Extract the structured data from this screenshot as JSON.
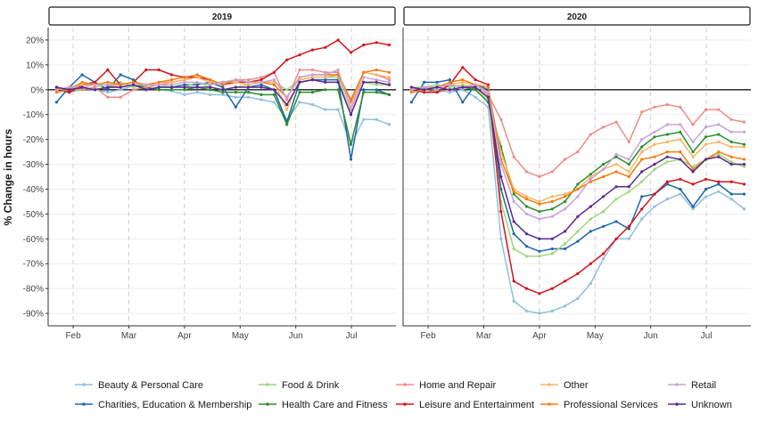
{
  "chart_data": {
    "type": "line",
    "ylabel": "% Change in hours",
    "ylim": [
      -95,
      25
    ],
    "yticks": [
      20,
      10,
      0,
      -10,
      -20,
      -30,
      -40,
      -50,
      -60,
      -70,
      -80,
      -90
    ],
    "ytick_labels": [
      "20%",
      "10%",
      "0%",
      "-10%",
      "-20%",
      "-30%",
      "-40%",
      "-50%",
      "-60%",
      "-70%",
      "-80%",
      "-90%"
    ],
    "xlim": [
      1.55,
      7.8
    ],
    "xticks": [
      2,
      3,
      4,
      5,
      6,
      7
    ],
    "xtick_labels": [
      "Feb",
      "Mar",
      "Apr",
      "May",
      "Jun",
      "Jul"
    ],
    "x_note": "x values are in months of the year (1.0 = Jan 1)",
    "grid": true,
    "legend_position": "bottom",
    "panels": [
      {
        "title": "2019",
        "x": [
          1.7,
          1.93,
          2.16,
          2.39,
          2.62,
          2.85,
          3.08,
          3.31,
          3.54,
          3.77,
          4.0,
          4.23,
          4.46,
          4.69,
          4.92,
          5.15,
          5.38,
          5.61,
          5.84,
          6.07,
          6.3,
          6.53,
          6.76,
          6.99,
          7.22,
          7.45,
          7.68
        ],
        "series": [
          {
            "name": "Beauty & Personal Care",
            "values": [
              0.5,
              -1,
              0.5,
              0,
              -1,
              0,
              1.5,
              1,
              0,
              -0.5,
              -2,
              -1,
              -2,
              -2,
              -3,
              -3,
              -4,
              -5,
              -12,
              -5,
              -6,
              -8,
              -8,
              -22,
              -12,
              -12,
              -14
            ]
          },
          {
            "name": "Charities, Education & Membership",
            "values": [
              -5,
              1,
              6,
              3,
              0,
              6,
              4,
              0,
              1,
              1,
              2,
              2,
              3,
              1,
              -7,
              1,
              2,
              0,
              -13,
              3,
              4,
              4,
              4,
              -28,
              0,
              0,
              -2
            ]
          },
          {
            "name": "Food & Drink",
            "values": [
              1,
              -1,
              0,
              1,
              2,
              3,
              1,
              2,
              2,
              1,
              1,
              3,
              1,
              0,
              1,
              2,
              3,
              3,
              0,
              4,
              5,
              5,
              5,
              -10,
              3,
              2,
              2
            ]
          },
          {
            "name": "Health Care and Fitness",
            "values": [
              1,
              -1,
              1,
              0,
              1,
              1,
              2,
              1,
              0,
              0,
              0,
              1,
              0,
              -1,
              -1,
              -1,
              -2,
              -2,
              -14,
              -1,
              -1,
              0,
              0,
              -22,
              -1,
              -1,
              -2
            ]
          },
          {
            "name": "Home and Repair",
            "values": [
              1,
              0,
              0,
              1,
              -3,
              -3,
              0,
              1,
              2,
              3,
              4,
              5,
              3,
              3,
              4,
              4,
              5,
              7,
              -4,
              8,
              8,
              7,
              7,
              -5,
              7,
              6,
              4
            ]
          },
          {
            "name": "Leisure and Entertainment",
            "values": [
              0,
              -1,
              2,
              3,
              8,
              2,
              3,
              8,
              8,
              6,
              5,
              5,
              4,
              2,
              3,
              3,
              4,
              7,
              12,
              14,
              16,
              17,
              20,
              15,
              18,
              19,
              18
            ]
          },
          {
            "name": "Other",
            "values": [
              0,
              1,
              2,
              2,
              2,
              2,
              3,
              2,
              3,
              3,
              4,
              5,
              3,
              3,
              3,
              2,
              3,
              3,
              -8,
              4,
              5,
              5,
              6,
              -7,
              7,
              6,
              5
            ]
          },
          {
            "name": "Professional Services",
            "values": [
              -1,
              0,
              3,
              2,
              3,
              2,
              3,
              2,
              3,
              4,
              5,
              6,
              4,
              2,
              4,
              3,
              3,
              2,
              -3,
              5,
              6,
              6,
              6,
              -4,
              7,
              8,
              7
            ]
          },
          {
            "name": "Retail",
            "values": [
              0,
              1,
              1,
              2,
              2,
              1,
              2,
              2,
              2,
              2,
              3,
              3,
              2,
              3,
              4,
              3,
              3,
              4,
              -3,
              5,
              6,
              6,
              8,
              -8,
              5,
              4,
              3
            ]
          },
          {
            "name": "Unknown",
            "values": [
              1,
              0,
              1,
              0,
              1,
              1,
              2,
              0,
              1,
              1,
              1,
              1,
              1,
              0,
              1,
              1,
              1,
              0,
              -6,
              3,
              4,
              3,
              3,
              -10,
              3,
              3,
              2
            ]
          }
        ]
      },
      {
        "title": "2020",
        "x": [
          1.7,
          1.93,
          2.16,
          2.39,
          2.62,
          2.85,
          3.08,
          3.31,
          3.54,
          3.77,
          4.0,
          4.23,
          4.46,
          4.69,
          4.92,
          5.15,
          5.38,
          5.61,
          5.84,
          6.07,
          6.3,
          6.53,
          6.76,
          6.99,
          7.22,
          7.45,
          7.68
        ],
        "series": [
          {
            "name": "Beauty & Personal Care",
            "values": [
              0,
              1,
              0,
              -1,
              0,
              -3,
              -7,
              -60,
              -85,
              -89,
              -90,
              -89,
              -87,
              -84,
              -78,
              -68,
              -60,
              -60,
              -52,
              -47,
              -44,
              -42,
              -48,
              -43,
              -41,
              -44,
              -48
            ]
          },
          {
            "name": "Charities, Education & Membership",
            "values": [
              -5,
              3,
              3,
              4,
              -5,
              2,
              0,
              -40,
              -58,
              -63,
              -65,
              -64,
              -64,
              -61,
              -57,
              -55,
              -53,
              -56,
              -43,
              -42,
              -38,
              -40,
              -47,
              -40,
              -38,
              -42,
              -42
            ]
          },
          {
            "name": "Food & Drink",
            "values": [
              1,
              1,
              2,
              1,
              2,
              1,
              -4,
              -45,
              -64,
              -67,
              -67,
              -66,
              -62,
              -57,
              -52,
              -49,
              -44,
              -41,
              -37,
              -32,
              -29,
              -28,
              -31,
              -28,
              -26,
              -29,
              -31
            ]
          },
          {
            "name": "Health Care and Fitness",
            "values": [
              0,
              1,
              1,
              2,
              1,
              0,
              -5,
              -23,
              -42,
              -47,
              -49,
              -48,
              -45,
              -38,
              -34,
              -30,
              -27,
              -30,
              -23,
              -19,
              -18,
              -17,
              -25,
              -19,
              -18,
              -21,
              -22
            ]
          },
          {
            "name": "Home and Repair",
            "values": [
              1,
              0,
              -1,
              0,
              1,
              2,
              -2,
              -12,
              -27,
              -33,
              -35,
              -33,
              -28,
              -25,
              -18,
              -15,
              -13,
              -21,
              -9,
              -7,
              -6,
              -7,
              -14,
              -8,
              -8,
              -12,
              -13
            ]
          },
          {
            "name": "Leisure and Entertainment",
            "values": [
              0,
              -1,
              -1,
              2,
              9,
              4,
              2,
              -49,
              -77,
              -80,
              -82,
              -80,
              -77,
              -74,
              -70,
              -66,
              -60,
              -55,
              -48,
              -42,
              -37,
              -36,
              -38,
              -36,
              -37,
              -37,
              -38
            ]
          },
          {
            "name": "Other",
            "values": [
              0,
              1,
              1,
              2,
              3,
              2,
              -1,
              -25,
              -40,
              -43,
              -45,
              -43,
              -42,
              -40,
              -35,
              -32,
              -30,
              -33,
              -25,
              -22,
              -21,
              -20,
              -27,
              -22,
              -21,
              -23,
              -23
            ]
          },
          {
            "name": "Professional Services",
            "values": [
              -1,
              0,
              1,
              3,
              4,
              2,
              1,
              -28,
              -41,
              -44,
              -46,
              -45,
              -43,
              -40,
              -37,
              -35,
              -33,
              -35,
              -28,
              -27,
              -25,
              -25,
              -32,
              -28,
              -25,
              -27,
              -28
            ]
          },
          {
            "name": "Retail",
            "values": [
              0,
              1,
              1,
              2,
              1,
              2,
              -1,
              -30,
              -45,
              -50,
              -52,
              -51,
              -48,
              -43,
              -36,
              -32,
              -26,
              -28,
              -20,
              -17,
              -14,
              -14,
              -21,
              -15,
              -14,
              -17,
              -17
            ]
          },
          {
            "name": "Unknown",
            "values": [
              1,
              0,
              1,
              0,
              1,
              1,
              -3,
              -35,
              -53,
              -58,
              -60,
              -60,
              -57,
              -51,
              -47,
              -43,
              -39,
              -39,
              -33,
              -30,
              -27,
              -28,
              -33,
              -28,
              -27,
              -30,
              -30
            ]
          }
        ]
      }
    ],
    "colors": {
      "Beauty & Personal Care": "#8fbfdc",
      "Charities, Education & Membership": "#1c68ad",
      "Food & Drink": "#9fd67e",
      "Health Care and Fitness": "#2b8f2b",
      "Home and Repair": "#f08b87",
      "Leisure and Entertainment": "#d4131d",
      "Other": "#f9b561",
      "Professional Services": "#f27c14",
      "Retail": "#c7a3d6",
      "Unknown": "#5b2a8d"
    },
    "legend": [
      "Beauty & Personal Care",
      "Food & Drink",
      "Home and Repair",
      "Other",
      "Retail",
      "Charities, Education & Membership",
      "Health Care and Fitness",
      "Leisure and Entertainment",
      "Professional Services",
      "Unknown"
    ]
  }
}
